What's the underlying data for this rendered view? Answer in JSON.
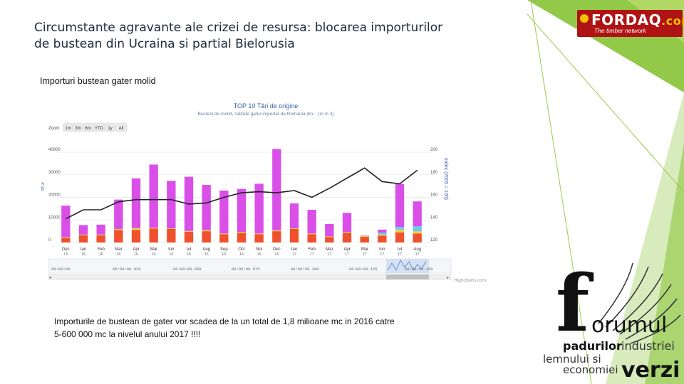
{
  "slide": {
    "title_line1": "Circumstante agravante ale crizei de resursa: blocarea importurilor",
    "title_line2": "de bustean din Ucraina  si partial Bielorusia",
    "section_label": "Importuri bustean gater molid",
    "caption_line1": "Importurile  de bustean de gater vor scadea de la un total de 1,8 milioane mc in 2016  catre",
    "caption_line2": "5-600 000 mc la nivelul anului 2017 !!!!"
  },
  "logos": {
    "fordaq_brand": "FORDAQ",
    "fordaq_com": ".com",
    "fordaq_tagline": "The timber network",
    "forum_letter": "f",
    "forum_word": "orumul",
    "forum_line2a": "padurilor",
    "forum_line2b": "industriei",
    "forum_line3": "lemnului si",
    "forum_line4": "economiei",
    "forum_verzi": "verzi"
  },
  "colors": {
    "accent_green": "#8cc63f",
    "light_green": "#c8e27a",
    "fordaq_red": "#b01313",
    "bar_magenta": "#d94fe8",
    "bar_red": "#f0502c",
    "line_black": "#222222"
  },
  "chart_data": {
    "type": "bar",
    "title": "TOP 10 Tări de origine",
    "subtitle": "Busteni de molid, calitate gater importat de Romania din... (in m 3)",
    "zoom_label": "Zoom",
    "zoom_buttons": [
      "1m",
      "3m",
      "6m",
      "YTD",
      "1y",
      "All"
    ],
    "ylabel_left": "m 3",
    "ylabel_right": "Index (2005 = 100)",
    "left_ticks": [
      "0",
      "10000",
      "20000",
      "30000",
      "40000"
    ],
    "right_ticks": [
      "120",
      "140",
      "160",
      "180",
      "200"
    ],
    "ylim_left": [
      0,
      40000
    ],
    "ylim_right": [
      120,
      200
    ],
    "categories": [
      "Dec 15",
      "Ian 16",
      "Feb 16",
      "Mar 16",
      "Apr 16",
      "Mai 16",
      "Iun 16",
      "Iul 16",
      "Aug 16",
      "Sep 16",
      "Oct 16",
      "Noi 16",
      "Dec 16",
      "Ian 17",
      "Feb 17",
      "Mar 17",
      "Apr 17",
      "Mai 17",
      "Iun 17",
      "Iul 17",
      "Aug 17"
    ],
    "month_labels": [
      "Dec",
      "Ian",
      "Feb",
      "Mar",
      "Apr",
      "Mai",
      "Iun",
      "Iul",
      "Aug",
      "Sep",
      "Oct",
      "Noi",
      "Dec",
      "Ian",
      "Feb",
      "Mar",
      "Apr",
      "Mai",
      "Iun",
      "Iul",
      "Aug"
    ],
    "year_labels": [
      "15",
      "16",
      "16",
      "16",
      "16",
      "16",
      "16",
      "16",
      "16",
      "16",
      "16",
      "16",
      "16",
      "17",
      "17",
      "17",
      "17",
      "17",
      "17",
      "17",
      "17"
    ],
    "series": [
      {
        "values": [
          14000,
          4200,
          4400,
          13000,
          22000,
          28000,
          21000,
          24000,
          20000,
          19000,
          19000,
          22000,
          36000,
          11000,
          10500,
          5500,
          8500,
          200,
          1300,
          19000,
          11000
        ]
      },
      {
        "values": [
          2000,
          3200,
          3200,
          5500,
          5500,
          6200,
          6000,
          4800,
          5000,
          3700,
          4300,
          3700,
          5000,
          6000,
          3700,
          2400,
          4300,
          2500,
          3000,
          4500,
          4000
        ]
      },
      {
        "values": [
          300,
          300,
          300,
          500,
          900,
          300,
          300,
          300,
          500,
          300,
          400,
          300,
          400,
          300,
          300,
          300,
          300,
          300,
          500,
          1200,
          1000
        ]
      },
      {
        "values": [
          0,
          0,
          0,
          0,
          0,
          0,
          0,
          0,
          0,
          0,
          0,
          0,
          0,
          0,
          0,
          0,
          0,
          0,
          900,
          1200,
          2200
        ]
      }
    ],
    "index_line": [
      141,
      149,
      149,
      156,
      158,
      158,
      158,
      154,
      155,
      160,
      164,
      165,
      164,
      166,
      160,
      168,
      177,
      186,
      174,
      172,
      184
    ],
    "navigator_labels": [
      "00:00:00.025",
      "00:00:00.050",
      "00:00:00.075",
      "00:00:00.100",
      "00:00:00.125",
      "00:00:00.150"
    ],
    "navigator_left_label": "00:00:00",
    "credit": "Highcharts.com"
  }
}
